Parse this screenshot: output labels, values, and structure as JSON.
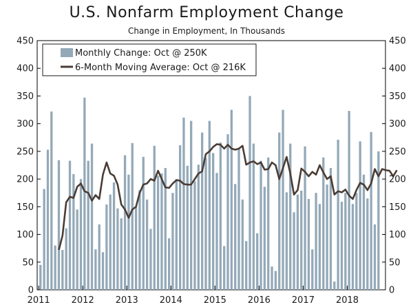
{
  "chart_data": {
    "type": "bar",
    "title": "U.S. Nonfarm Employment Change",
    "subtitle": "Change in Employment, In Thousands",
    "ylim": [
      0,
      450
    ],
    "y_ticks": [
      0,
      50,
      100,
      150,
      200,
      250,
      300,
      350,
      400,
      450
    ],
    "x_tick_labels": [
      "2011",
      "2012",
      "2013",
      "2014",
      "2015",
      "2016",
      "2017",
      "2018"
    ],
    "x_start": "2011-01",
    "x_end": "2018-10",
    "grid": false,
    "legend_placement": "top-left",
    "colors": {
      "bars": "#94a9b8",
      "line": "#4a3c34"
    },
    "series": [
      {
        "name": "Monthly Change: Oct @ 250K",
        "type": "bar",
        "values": [
          45,
          182,
          253,
          322,
          80,
          234,
          72,
          111,
          233,
          209,
          145,
          200,
          347,
          233,
          264,
          73,
          118,
          68,
          154,
          172,
          194,
          147,
          129,
          243,
          208,
          265,
          151,
          180,
          240,
          163,
          110,
          260,
          206,
          210,
          220,
          93,
          175,
          200,
          261,
          311,
          224,
          305,
          196,
          226,
          284,
          238,
          305,
          247,
          211,
          266,
          79,
          281,
          325,
          191,
          255,
          163,
          88,
          350,
          264,
          102,
          233,
          186,
          239,
          42,
          34,
          284,
          325,
          176,
          264,
          140,
          172,
          179,
          259,
          164,
          73,
          175,
          155,
          239,
          190,
          220,
          15,
          271,
          159,
          175,
          323,
          155,
          175,
          268,
          208,
          165,
          285,
          118,
          250
        ],
        "x_start": "2011-01"
      },
      {
        "name": "6-Month Moving Average: Oct @ 216K",
        "type": "line",
        "values": [
          72,
          98,
          158,
          168,
          166,
          186,
          192,
          178,
          175,
          161,
          171,
          164,
          208,
          230,
          210,
          206,
          190,
          154,
          145,
          130,
          145,
          150,
          175,
          190,
          192,
          200,
          197,
          215,
          200,
          185,
          184,
          192,
          198,
          197,
          191,
          190,
          190,
          200,
          210,
          214,
          245,
          250,
          258,
          263,
          262,
          255,
          262,
          255,
          253,
          255,
          260,
          226,
          230,
          232,
          227,
          230,
          217,
          218,
          230,
          225,
          200,
          220,
          240,
          210,
          172,
          180,
          219,
          213,
          205,
          213,
          208,
          225,
          212,
          200,
          205,
          172,
          178,
          176,
          181,
          170,
          164,
          180,
          193,
          190,
          180,
          192,
          218,
          205,
          218,
          216,
          215,
          205,
          216
        ],
        "x_start": "2011-06"
      }
    ]
  }
}
